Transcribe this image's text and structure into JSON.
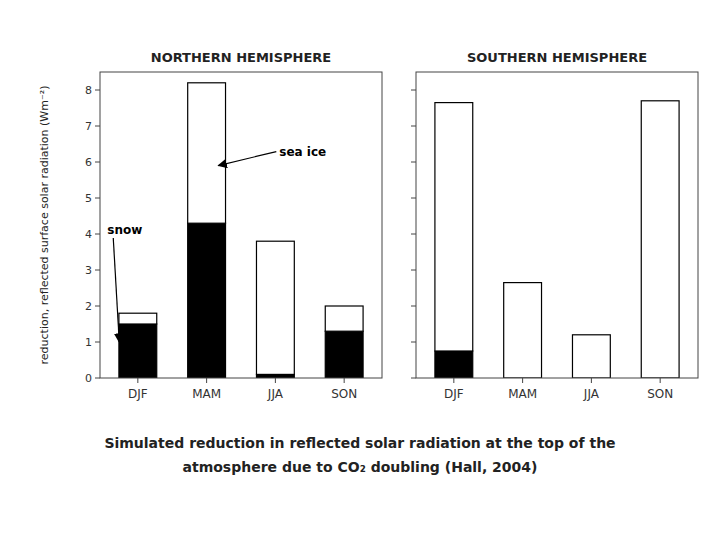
{
  "chart_data": [
    {
      "type": "bar",
      "stacked": true,
      "title": "NORTHERN HEMISPHERE",
      "ylabel": "reduction, reflected surface solar radiation (Wm⁻²)",
      "categories": [
        "DJF",
        "MAM",
        "JJA",
        "SON"
      ],
      "series": [
        {
          "color": "#000000",
          "values": [
            1.5,
            4.3,
            0.1,
            1.3
          ]
        },
        {
          "color": "#ffffff",
          "values": [
            0.3,
            3.9,
            3.7,
            0.7
          ]
        }
      ],
      "ylim": [
        0,
        8.5
      ],
      "yticks": [
        0,
        1,
        2,
        3,
        4,
        5,
        6,
        7,
        8
      ],
      "annotations": [
        {
          "text": "snow",
          "x": "DJF",
          "y": 1.0
        },
        {
          "text": "sea ice",
          "x": "MAM",
          "y": 5.9
        }
      ]
    },
    {
      "type": "bar",
      "stacked": true,
      "title": "SOUTHERN HEMISPHERE",
      "categories": [
        "DJF",
        "MAM",
        "JJA",
        "SON"
      ],
      "series": [
        {
          "color": "#000000",
          "values": [
            0.75,
            0.0,
            0.0,
            0.0
          ]
        },
        {
          "color": "#ffffff",
          "values": [
            6.9,
            2.65,
            1.2,
            7.7
          ]
        }
      ],
      "ylim": [
        0,
        8.5
      ],
      "yticks": [
        0,
        1,
        2,
        3,
        4,
        5,
        6,
        7,
        8
      ],
      "tick_labels": "x"
    }
  ],
  "caption": [
    "Simulated reduction in reflected solar radiation at the top of the",
    "atmosphere due to CO₂ doubling (Hall, 2004)"
  ]
}
